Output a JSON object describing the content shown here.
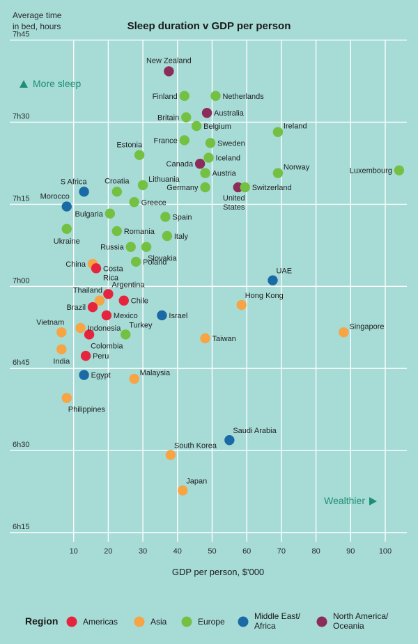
{
  "chart_data": {
    "type": "scatter",
    "title": "Sleep duration v GDP per person",
    "ylabel_lines": [
      "Average time",
      "in bed, hours"
    ],
    "xlabel": "GDP per person, $'000",
    "xlim": [
      0,
      105
    ],
    "ylim_minutes": [
      375,
      465
    ],
    "x_ticks": [
      10,
      20,
      30,
      40,
      50,
      60,
      70,
      80,
      90,
      100
    ],
    "x_tick_labels": [
      "10",
      "20",
      "30",
      "40",
      "50",
      "60",
      "70",
      "80",
      "90",
      "100"
    ],
    "y_ticks": [
      375,
      390,
      405,
      420,
      435,
      450,
      465
    ],
    "y_tick_labels": [
      "6h15",
      "6h30",
      "6h45",
      "7h00",
      "7h15",
      "7h30",
      "7h45"
    ],
    "grid": true,
    "annotations": {
      "more_sleep": "More sleep",
      "wealthier": "Wealthier"
    },
    "legend": {
      "title": "Region",
      "position": "bottom",
      "items": [
        {
          "key": "americas",
          "label": "Americas",
          "color": "#e5253d"
        },
        {
          "key": "asia",
          "label": "Asia",
          "color": "#f7a444"
        },
        {
          "key": "europe",
          "label": "Europe",
          "color": "#74c043"
        },
        {
          "key": "mea",
          "label": "Middle East/\nAfrica",
          "color": "#1a6aa6"
        },
        {
          "key": "nao",
          "label": "North America/\nOceania",
          "color": "#8c2c5a"
        }
      ]
    },
    "points": [
      {
        "name": "New Zealand",
        "region": "nao",
        "x": 37.5,
        "y": 459.3,
        "la": "above"
      },
      {
        "name": "Finland",
        "region": "europe",
        "x": 42,
        "y": 454.8,
        "la": "left"
      },
      {
        "name": "Netherlands",
        "region": "europe",
        "x": 51,
        "y": 454.8,
        "la": "right"
      },
      {
        "name": "Australia",
        "region": "nao",
        "x": 48.5,
        "y": 451.7,
        "la": "right"
      },
      {
        "name": "Britain",
        "region": "europe",
        "x": 42.5,
        "y": 450.9,
        "la": "left"
      },
      {
        "name": "Belgium",
        "region": "europe",
        "x": 45.5,
        "y": 449.3,
        "la": "right"
      },
      {
        "name": "Ireland",
        "region": "europe",
        "x": 69,
        "y": 448.2,
        "la": "right-up"
      },
      {
        "name": "France",
        "region": "europe",
        "x": 42,
        "y": 446.7,
        "la": "left"
      },
      {
        "name": "Sweden",
        "region": "europe",
        "x": 49.5,
        "y": 446.2,
        "la": "right"
      },
      {
        "name": "Estonia",
        "region": "europe",
        "x": 29,
        "y": 444,
        "la": "above-left"
      },
      {
        "name": "Iceland",
        "region": "europe",
        "x": 49,
        "y": 443.5,
        "la": "right"
      },
      {
        "name": "Canada",
        "region": "nao",
        "x": 46.5,
        "y": 442.4,
        "la": "left"
      },
      {
        "name": "Norway",
        "region": "europe",
        "x": 69,
        "y": 440.7,
        "la": "right-up"
      },
      {
        "name": "Austria",
        "region": "europe",
        "x": 48,
        "y": 440.7,
        "la": "right"
      },
      {
        "name": "Luxembourg",
        "region": "europe",
        "x": 104,
        "y": 441.2,
        "la": "left"
      },
      {
        "name": "Lithuania",
        "region": "europe",
        "x": 30,
        "y": 438.5,
        "la": "right-up"
      },
      {
        "name": "Germany",
        "region": "europe",
        "x": 48,
        "y": 438.1,
        "la": "left"
      },
      {
        "name": "United\nStates",
        "region": "nao",
        "x": 57.5,
        "y": 438.1,
        "la": "below-left"
      },
      {
        "name": "Switzerland",
        "region": "europe",
        "x": 59.5,
        "y": 438.1,
        "la": "right"
      },
      {
        "name": "S Africa",
        "region": "mea",
        "x": 13,
        "y": 437.3,
        "la": "above-left"
      },
      {
        "name": "Croatia",
        "region": "europe",
        "x": 22.5,
        "y": 437.3,
        "la": "above"
      },
      {
        "name": "Greece",
        "region": "europe",
        "x": 27.5,
        "y": 435.4,
        "la": "right"
      },
      {
        "name": "Morocco",
        "region": "mea",
        "x": 8,
        "y": 434.6,
        "la": "above-left"
      },
      {
        "name": "Bulgaria",
        "region": "europe",
        "x": 20.5,
        "y": 433.3,
        "la": "left"
      },
      {
        "name": "Spain",
        "region": "europe",
        "x": 36.5,
        "y": 432.7,
        "la": "right"
      },
      {
        "name": "Ukraine",
        "region": "europe",
        "x": 8,
        "y": 430.5,
        "la": "below"
      },
      {
        "name": "Romania",
        "region": "europe",
        "x": 22.5,
        "y": 430.1,
        "la": "right"
      },
      {
        "name": "Italy",
        "region": "europe",
        "x": 37,
        "y": 429.2,
        "la": "right"
      },
      {
        "name": "Russia",
        "region": "europe",
        "x": 26.5,
        "y": 427.2,
        "la": "left"
      },
      {
        "name": "Slovakia",
        "region": "europe",
        "x": 31,
        "y": 427.2,
        "la": "below-right"
      },
      {
        "name": "China",
        "region": "asia",
        "x": 15.5,
        "y": 424.1,
        "la": "left"
      },
      {
        "name": "Poland",
        "region": "europe",
        "x": 28,
        "y": 424.5,
        "la": "right"
      },
      {
        "name": "Costa\nRica",
        "region": "americas",
        "x": 16.5,
        "y": 423.3,
        "la": "right"
      },
      {
        "name": "UAE",
        "region": "mea",
        "x": 67.5,
        "y": 421.1,
        "la": "above-right"
      },
      {
        "name": "Thailand",
        "region": "asia",
        "x": 17.5,
        "y": 417.4,
        "la": "above-left"
      },
      {
        "name": "Argentina",
        "region": "americas",
        "x": 20,
        "y": 418.6,
        "la": "above-right"
      },
      {
        "name": "Chile",
        "region": "americas",
        "x": 24.5,
        "y": 417.4,
        "la": "right"
      },
      {
        "name": "Hong Kong",
        "region": "asia",
        "x": 58.5,
        "y": 416.6,
        "la": "above-right"
      },
      {
        "name": "Brazil",
        "region": "americas",
        "x": 15.5,
        "y": 416.2,
        "la": "left"
      },
      {
        "name": "Israel",
        "region": "mea",
        "x": 35.5,
        "y": 414.7,
        "la": "right"
      },
      {
        "name": "Mexico",
        "region": "americas",
        "x": 19.5,
        "y": 414.7,
        "la": "right"
      },
      {
        "name": "Vietnam",
        "region": "asia",
        "x": 6.5,
        "y": 411.6,
        "la": "above-left"
      },
      {
        "name": "Indonesia",
        "region": "asia",
        "x": 12,
        "y": 412.4,
        "la": "right"
      },
      {
        "name": "Singapore",
        "region": "asia",
        "x": 88,
        "y": 411.6,
        "la": "right-up"
      },
      {
        "name": "Turkey",
        "region": "europe",
        "x": 25,
        "y": 411.2,
        "la": "above-right"
      },
      {
        "name": "Colombia",
        "region": "americas",
        "x": 14.5,
        "y": 411.2,
        "la": "below-right"
      },
      {
        "name": "Taiwan",
        "region": "asia",
        "x": 48,
        "y": 410.5,
        "la": "right"
      },
      {
        "name": "India",
        "region": "asia",
        "x": 6.5,
        "y": 408.5,
        "la": "below"
      },
      {
        "name": "Peru",
        "region": "americas",
        "x": 13.5,
        "y": 407.3,
        "la": "right"
      },
      {
        "name": "Egypt",
        "region": "mea",
        "x": 13,
        "y": 403.8,
        "la": "right"
      },
      {
        "name": "Malaysia",
        "region": "asia",
        "x": 27.5,
        "y": 403.1,
        "la": "right-up"
      },
      {
        "name": "Philippines",
        "region": "asia",
        "x": 8,
        "y": 399.6,
        "la": "below-right"
      },
      {
        "name": "Saudi Arabia",
        "region": "mea",
        "x": 55,
        "y": 391.9,
        "la": "above-right"
      },
      {
        "name": "South Korea",
        "region": "asia",
        "x": 38,
        "y": 389.2,
        "la": "above-right"
      },
      {
        "name": "Japan",
        "region": "asia",
        "x": 41.5,
        "y": 382.7,
        "la": "above-right"
      }
    ]
  }
}
